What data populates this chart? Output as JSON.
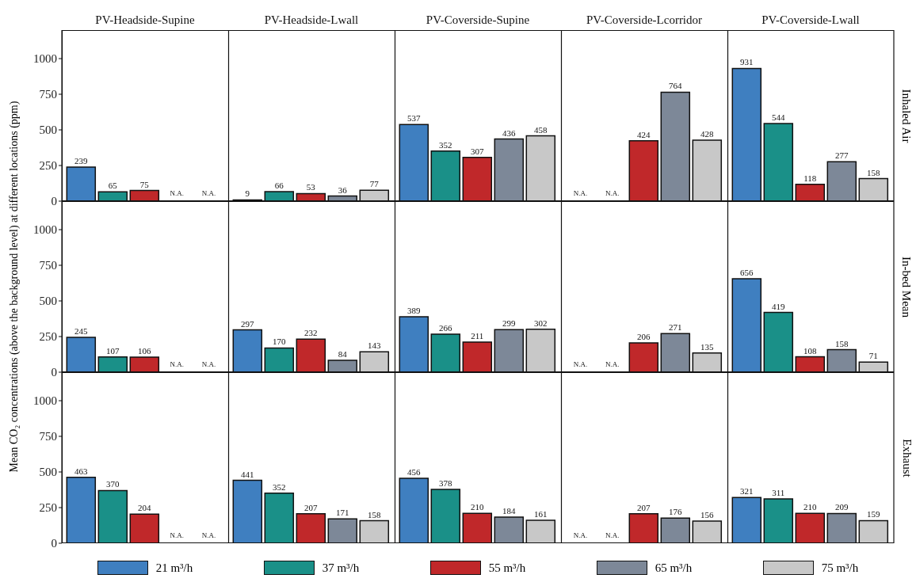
{
  "chart_data": [
    {
      "type": "bar",
      "annotations": [
        "Inhaled Air"
      ],
      "categories": [
        "PV-Headside-Supine",
        "PV-Headside-Lwall",
        "PV-Coverside-Supine",
        "PV-Coverside-Lcorridor",
        "PV-Coverside-Lwall"
      ],
      "series": [
        {
          "color": "#3f7fc0",
          "values": [
            239,
            9,
            537,
            null,
            931
          ],
          "value_labels": [
            "239",
            "9",
            "537",
            "N.A.",
            "931"
          ]
        },
        {
          "color": "#1a9088",
          "values": [
            65,
            66,
            352,
            null,
            544
          ],
          "value_labels": [
            "65",
            "66",
            "352",
            "N.A.",
            "544"
          ]
        },
        {
          "color": "#c0282a",
          "values": [
            75,
            53,
            307,
            424,
            118
          ],
          "value_labels": [
            "75",
            "53",
            "307",
            "424",
            "118"
          ]
        },
        {
          "color": "#7d8898",
          "values": [
            null,
            36,
            436,
            764,
            277
          ],
          "value_labels": [
            "N.A.",
            "36",
            "436",
            "764",
            "277"
          ]
        },
        {
          "color": "#c8c8c8",
          "values": [
            null,
            77,
            458,
            428,
            158
          ],
          "value_labels": [
            "N.A.",
            "77",
            "458",
            "428",
            "158"
          ]
        }
      ],
      "ylim": [
        0,
        1200
      ],
      "yticks": [
        0,
        250,
        500,
        750,
        1000
      ]
    },
    {
      "type": "bar",
      "ylabel": "Mean CO₂ concentrations (above the background level) at different locations (ppm)",
      "annotations": [
        "In-bed Mean"
      ],
      "categories": [
        null,
        null,
        null,
        null,
        null
      ],
      "series": [
        {
          "color": "#3f7fc0",
          "values": [
            245,
            297,
            389,
            null,
            656
          ],
          "value_labels": [
            "245",
            "297",
            "389",
            "N.A.",
            "656"
          ]
        },
        {
          "color": "#1a9088",
          "values": [
            107,
            170,
            266,
            null,
            419
          ],
          "value_labels": [
            "107",
            "170",
            "266",
            "N.A.",
            "419"
          ]
        },
        {
          "color": "#c0282a",
          "values": [
            106,
            232,
            211,
            206,
            108
          ],
          "value_labels": [
            "106",
            "232",
            "211",
            "206",
            "108"
          ]
        },
        {
          "color": "#7d8898",
          "values": [
            null,
            84,
            299,
            271,
            158
          ],
          "value_labels": [
            "N.A.",
            "84",
            "299",
            "271",
            "158"
          ]
        },
        {
          "color": "#c8c8c8",
          "values": [
            null,
            143,
            302,
            135,
            71
          ],
          "value_labels": [
            "N.A.",
            "143",
            "302",
            "135",
            "71"
          ]
        }
      ],
      "ylim": [
        0,
        1200
      ],
      "yticks": [
        0,
        250,
        500,
        750,
        1000
      ],
      "tick_labels": "y"
    },
    {
      "type": "bar",
      "legend": "bottom",
      "annotations": [
        "Exhaust"
      ],
      "categories": [
        null,
        null,
        null,
        null,
        null
      ],
      "series": [
        {
          "name": "21 m³/h",
          "color": "#3f7fc0",
          "values": [
            463,
            441,
            456,
            null,
            321
          ],
          "value_labels": [
            "463",
            "441",
            "456",
            "N.A.",
            "321"
          ]
        },
        {
          "name": "37 m³/h",
          "color": "#1a9088",
          "values": [
            370,
            352,
            378,
            null,
            311
          ],
          "value_labels": [
            "370",
            "352",
            "378",
            "N.A.",
            "311"
          ]
        },
        {
          "name": "55 m³/h",
          "color": "#c0282a",
          "values": [
            204,
            207,
            210,
            207,
            210
          ],
          "value_labels": [
            "204",
            "207",
            "210",
            "207",
            "210"
          ]
        },
        {
          "name": "65 m³/h",
          "color": "#7d8898",
          "values": [
            null,
            171,
            184,
            176,
            209
          ],
          "value_labels": [
            "N.A.",
            "171",
            "184",
            "176",
            "209"
          ]
        },
        {
          "name": "75 m³/h",
          "color": "#c8c8c8",
          "values": [
            null,
            158,
            161,
            156,
            159
          ],
          "value_labels": [
            "N.A.",
            "158",
            "161",
            "156",
            "159"
          ]
        }
      ],
      "ylim": [
        0,
        1200
      ],
      "yticks": [
        0,
        250,
        500,
        750,
        1000
      ],
      "tick_labels": "y"
    }
  ]
}
